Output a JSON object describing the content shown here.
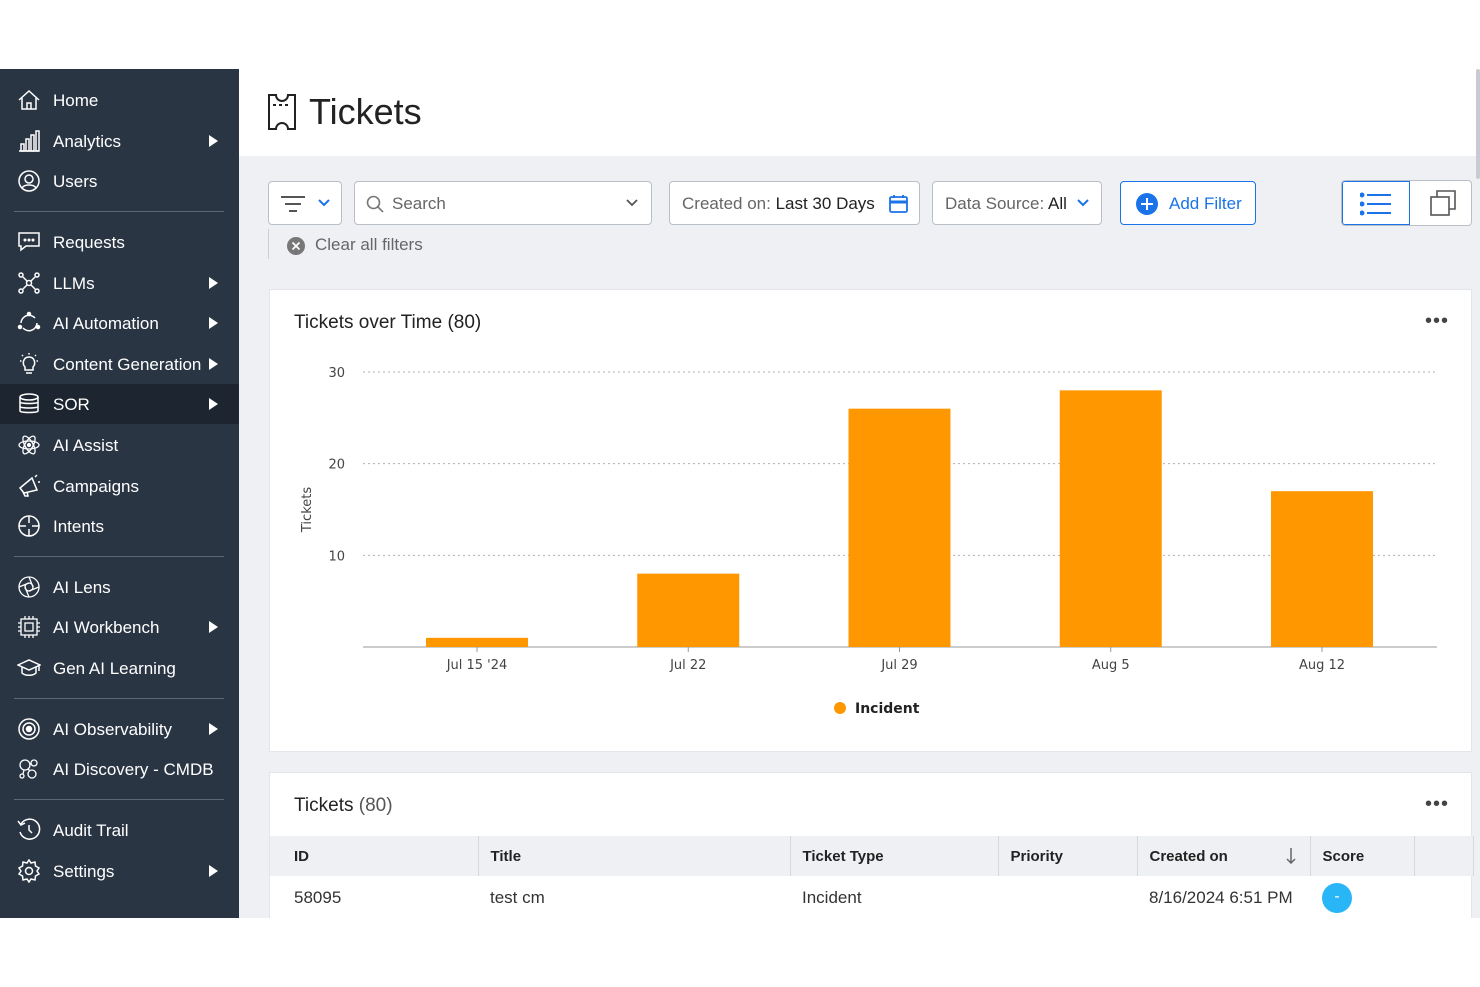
{
  "sidebar": {
    "items": [
      {
        "label": "Home",
        "icon": "home-icon"
      },
      {
        "label": "Analytics",
        "icon": "bar-chart-icon"
      },
      {
        "label": "Users",
        "icon": "user-icon"
      },
      {
        "label": "Requests",
        "icon": "chat-icon"
      },
      {
        "label": "LLMs",
        "icon": "network-icon"
      },
      {
        "label": "AI Automation",
        "icon": "automation-icon"
      },
      {
        "label": "Content Generation",
        "icon": "lightbulb-icon"
      },
      {
        "label": "SOR",
        "icon": "database-icon"
      },
      {
        "label": "AI Assist",
        "icon": "atom-icon"
      },
      {
        "label": "Campaigns",
        "icon": "megaphone-icon"
      },
      {
        "label": "Intents",
        "icon": "crosshair-icon"
      },
      {
        "label": "AI Lens",
        "icon": "aperture-icon"
      },
      {
        "label": "AI Workbench",
        "icon": "chip-icon"
      },
      {
        "label": "Gen AI Learning",
        "icon": "graduation-cap-icon"
      },
      {
        "label": "AI Observability",
        "icon": "target-icon"
      },
      {
        "label": "AI Discovery - CMDB",
        "icon": "discovery-icon"
      },
      {
        "label": "Audit Trail",
        "icon": "history-icon"
      },
      {
        "label": "Settings",
        "icon": "gear-icon"
      }
    ]
  },
  "header": {
    "title": "Tickets"
  },
  "filters": {
    "search_placeholder": "Search",
    "created_on_label": "Created on:",
    "created_on_value": "Last 30 Days",
    "data_source_label": "Data Source:",
    "data_source_value": "All",
    "add_filter_label": "Add Filter",
    "clear_all_label": "Clear all filters"
  },
  "chart_card": {
    "title": "Tickets over Time (80)"
  },
  "chart_data": {
    "type": "bar",
    "title": "Tickets over Time (80)",
    "categories": [
      "Jul 15 '24",
      "Jul 22",
      "Jul 29",
      "Aug 5",
      "Aug 12"
    ],
    "series": [
      {
        "name": "Incident",
        "values": [
          1,
          8,
          26,
          28,
          17
        ],
        "color": "#ff9800"
      }
    ],
    "xlabel": "",
    "ylabel": "Tickets",
    "yticks": [
      10,
      20,
      30
    ],
    "ylim": [
      0,
      30
    ],
    "grid": true,
    "legend": "bottom"
  },
  "tickets_card": {
    "title": "Tickets",
    "count": "(80)"
  },
  "table": {
    "columns": [
      "ID",
      "Title",
      "Ticket Type",
      "Priority",
      "Created on",
      "Score"
    ],
    "rows": [
      {
        "id": "58095",
        "title": "test cm",
        "type": "Incident",
        "priority": "",
        "created": "8/16/2024 6:51 PM",
        "score": "-"
      }
    ]
  },
  "colors": {
    "sidebar_bg": "#2a3544",
    "accent": "#1a73e8",
    "bar": "#ff9800",
    "score": "#29b6f6"
  }
}
